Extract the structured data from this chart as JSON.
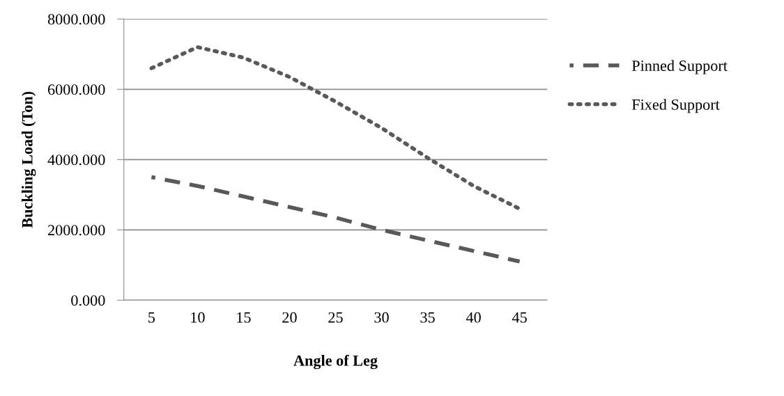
{
  "chart_data": {
    "type": "line",
    "xlabel": "Angle of Leg",
    "ylabel": "Buckling Load (Ton)",
    "categories": [
      "5",
      "10",
      "15",
      "20",
      "25",
      "30",
      "35",
      "40",
      "45"
    ],
    "series": [
      {
        "name": "Pinned Support",
        "color": "#595959",
        "line_style": "dashed",
        "values": [
          3500,
          3250,
          2950,
          2650,
          2350,
          2000,
          1700,
          1400,
          1100
        ]
      },
      {
        "name": "Fixed Support",
        "color": "#595959",
        "line_style": "dotted",
        "values": [
          6600,
          7200,
          6900,
          6350,
          5650,
          4900,
          4050,
          3250,
          2600
        ]
      }
    ],
    "ylim": [
      0,
      8000
    ],
    "yticks": [
      {
        "value": 0,
        "label": "0.000"
      },
      {
        "value": 2000,
        "label": "2000.000"
      },
      {
        "value": 4000,
        "label": "4000.000"
      },
      {
        "value": 6000,
        "label": "6000.000"
      },
      {
        "value": 8000,
        "label": "8000.000"
      }
    ],
    "grid": "y",
    "legend": "right",
    "marker": "none"
  }
}
